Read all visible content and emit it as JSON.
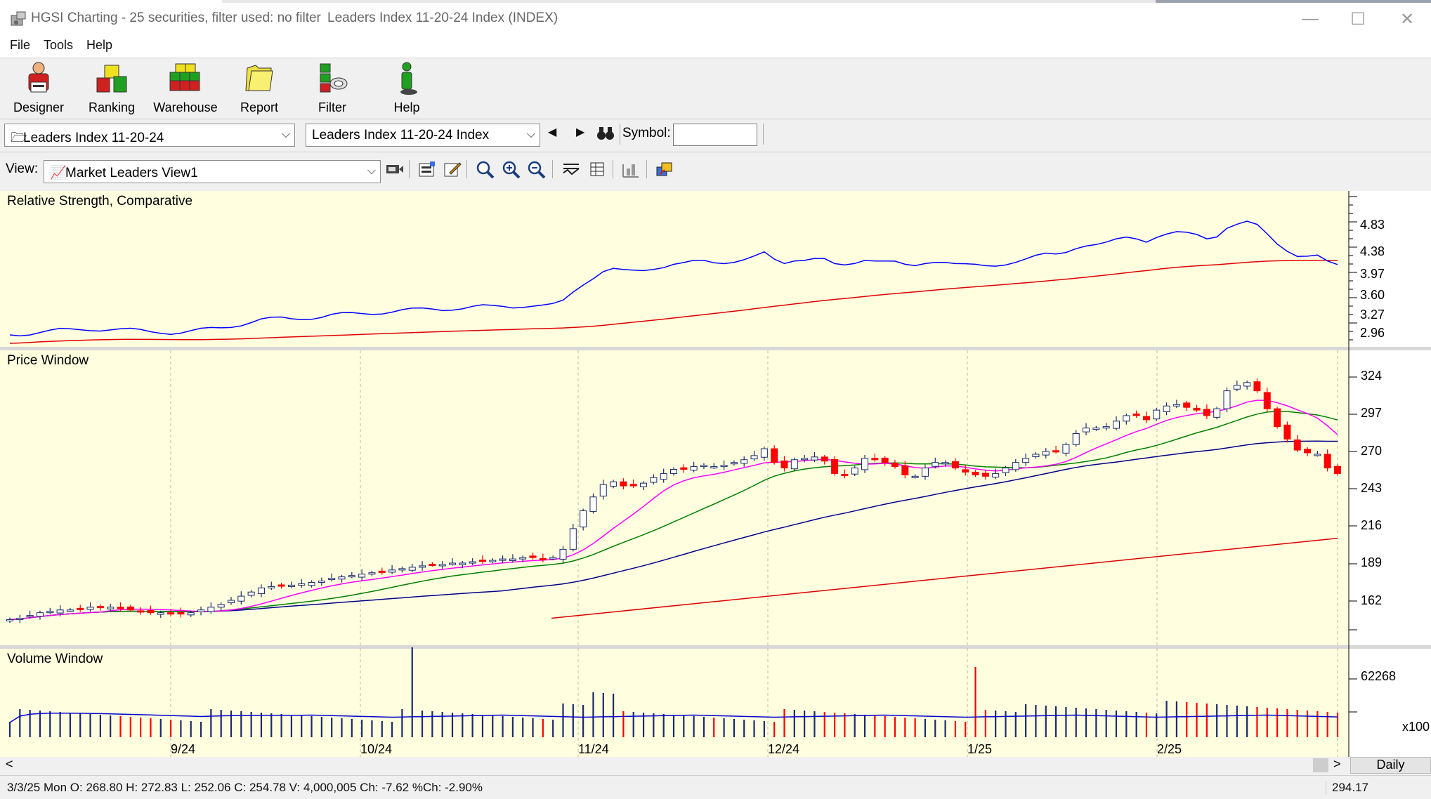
{
  "window": {
    "title": "HGSI Charting - 25 securities, filter used: no filter",
    "document_title": "Leaders Index 11-20-24 Index (INDEX)",
    "minimize": "—",
    "maximize": "☐",
    "close": "✕"
  },
  "menu": [
    "File",
    "Tools",
    "Help"
  ],
  "toolbar": [
    {
      "label": "Designer",
      "icon": "designer-icon"
    },
    {
      "label": "Ranking",
      "icon": "ranking-icon"
    },
    {
      "label": "Warehouse",
      "icon": "warehouse-icon"
    },
    {
      "label": "Report",
      "icon": "report-icon"
    },
    {
      "label": "Filter",
      "icon": "filter-icon"
    },
    {
      "label": "Help",
      "icon": "help-icon"
    }
  ],
  "selectors": {
    "list_combo": "Leaders Index 11-20-24",
    "security_combo": "Leaders Index 11-20-24 Index",
    "symbol_label": "Symbol:",
    "symbol_value": "",
    "view_label": "View:",
    "view_combo": "Market Leaders View1"
  },
  "panes": {
    "rs_title": "Relative Strength, Comparative",
    "price_title": "Price Window",
    "volume_title": "Volume Window"
  },
  "axes": {
    "rs_ticks": [
      "4.83",
      "4.38",
      "3.97",
      "3.60",
      "3.27",
      "2.96"
    ],
    "price_ticks": [
      "324",
      "297",
      "270",
      "243",
      "216",
      "189",
      "162"
    ],
    "volume_ticks": [
      "62268"
    ],
    "volume_unit": "x100",
    "dates": [
      "9/24",
      "10/24",
      "11/24",
      "12/24",
      "1/25",
      "2/25"
    ]
  },
  "scroll": {
    "left": "<",
    "right": ">",
    "period_button": "Daily"
  },
  "status": {
    "text": "3/3/25 Mon O: 268.80 H: 272.83 L: 252.06 C: 254.78 V: 4,000,005 Ch: -7.62 %Ch: -2.90%",
    "value": "294.17"
  },
  "colors": {
    "chart_bg": "#ffffe0",
    "up_candle": "#ffffff",
    "down_candle": "#ff0000",
    "ma_short": "#ff00ff",
    "ma_mid": "#008000",
    "ma_long": "#00008b",
    "ma_200": "#dd0000",
    "rs_line": "#0000ff",
    "rs_ma": "#e00000"
  },
  "chart_data": {
    "type": "candlestick",
    "title": "Leaders Index 11-20-24 Index (INDEX)",
    "x_labels": [
      "9/24",
      "10/24",
      "11/24",
      "12/24",
      "1/25",
      "2/25"
    ],
    "ylim": [
      135,
      335
    ],
    "closes": [
      148,
      149,
      151,
      153,
      154,
      155,
      155,
      156,
      157,
      157,
      157,
      156,
      155,
      154,
      153,
      153,
      152,
      152,
      153,
      155,
      157,
      159,
      162,
      165,
      168,
      171,
      172,
      173,
      173,
      174,
      175,
      176,
      178,
      179,
      180,
      181,
      182,
      183,
      184,
      185,
      186,
      187,
      188,
      188,
      189,
      189,
      190,
      191,
      191,
      192,
      192,
      193,
      193,
      192,
      193,
      199,
      214,
      227,
      237,
      246,
      248,
      245,
      245,
      247,
      251,
      254,
      257,
      257,
      259,
      260,
      259,
      260,
      262,
      264,
      267,
      272,
      262,
      258,
      264,
      265,
      266,
      263,
      254,
      253,
      258,
      265,
      264,
      262,
      259,
      253,
      252,
      258,
      262,
      262,
      258,
      255,
      253,
      252,
      254,
      258,
      262,
      265,
      268,
      270,
      270,
      275,
      283,
      287,
      287,
      288,
      292,
      296,
      296,
      293,
      300,
      303,
      304,
      302,
      300,
      296,
      301,
      314,
      318,
      320,
      314,
      301,
      288,
      279,
      271,
      269,
      268,
      258,
      254
    ],
    "last": {
      "date": "3/3/25",
      "open": 268.8,
      "high": 272.83,
      "low": 252.06,
      "close": 254.78,
      "volume": "4,000,005",
      "change": -7.62,
      "pct_change": "-2.90%"
    }
  }
}
